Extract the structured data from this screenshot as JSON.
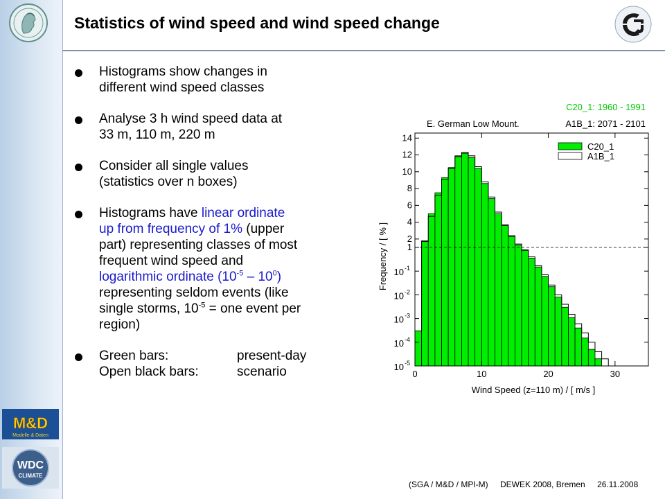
{
  "slide": {
    "title": "Statistics of wind speed and wind speed change",
    "bullets": [
      {
        "lines": [
          "Histograms show changes in",
          "different wind speed classes"
        ]
      },
      {
        "lines": [
          "Analyse 3 h wind speed data at",
          "33 m, 110 m, 220 m"
        ]
      },
      {
        "lines": [
          "Consider all single values",
          "(statistics over n boxes)"
        ]
      }
    ],
    "bullet4": {
      "p1": "Histograms have ",
      "b1": "linear ordinate",
      "b2": "up from frequency of 1%",
      "p2": " (upper",
      "l3": "part) representing classes of most",
      "l4": "frequent wind speed and",
      "b3": "logarithmic ordinate (10",
      "sup1": "-5",
      "b4": " – 10",
      "sup2": "0",
      "b5": ")",
      "l6": "representing seldom events (like",
      "l7a": "single storms, 10",
      "sup3": "-5",
      "l7b": " = one event per",
      "l8": "region)"
    },
    "bullet5": {
      "green_label": "Green bars:",
      "green_value": "present-day",
      "open_label": "Open black bars:",
      "open_value": "scenario"
    },
    "footer": {
      "source": "(SGA / M&D / MPI-M)",
      "event": "DEWEK 2008, Bremen",
      "date": "26.11.2008"
    },
    "logos": {
      "md_text": "M&D",
      "md_sub": "Modelle & Daten",
      "wdc_text": "WDC",
      "wdc_sub": "CLIMATE"
    }
  },
  "chart_data": {
    "type": "bar",
    "region_label": "E. German Low Mount.",
    "period_green": "C20_1: 1960 - 1991",
    "period_black": "A1B_1: 2071 - 2101",
    "legend": [
      "C20_1",
      "A1B_1"
    ],
    "xlabel": "Wind Speed (z=110 m) / [ m/s ]",
    "ylabel": "Frequency / [ % ]",
    "xlim": [
      0,
      35
    ],
    "x_ticks": [
      "0",
      "10",
      "20",
      "30"
    ],
    "y_ticks_linear": [
      "1",
      "2",
      "4",
      "6",
      "8",
      "10",
      "12",
      "14"
    ],
    "y_ticks_log": [
      {
        "base": "10",
        "exp": "-1"
      },
      {
        "base": "10",
        "exp": "-2"
      },
      {
        "base": "10",
        "exp": "-3"
      },
      {
        "base": "10",
        "exp": "-4"
      },
      {
        "base": "10",
        "exp": "-5"
      }
    ],
    "reference_line": 1,
    "colors": {
      "green": "#00ee00",
      "black": "#000000"
    },
    "series": [
      {
        "name": "C20_1",
        "bin_start": 0,
        "bin_width": 1,
        "values": [
          0.0003,
          1.8,
          5.0,
          7.5,
          9.3,
          10.5,
          11.9,
          12.2,
          11.7,
          10.4,
          8.6,
          6.8,
          5.0,
          3.6,
          2.3,
          1.3,
          0.75,
          0.35,
          0.15,
          0.06,
          0.022,
          0.008,
          0.003,
          0.0011,
          0.0004,
          0.00015,
          5e-05,
          2e-05
        ]
      },
      {
        "name": "A1B_1",
        "bin_start": 0,
        "bin_width": 1,
        "values": [
          0.0003,
          1.7,
          4.7,
          7.2,
          9.1,
          10.4,
          11.8,
          12.3,
          11.9,
          10.6,
          8.8,
          7.0,
          5.2,
          3.7,
          2.4,
          1.4,
          0.8,
          0.4,
          0.17,
          0.07,
          0.026,
          0.01,
          0.004,
          0.0015,
          0.0006,
          0.00025,
          0.0001,
          4e-05,
          2e-05
        ]
      }
    ]
  }
}
